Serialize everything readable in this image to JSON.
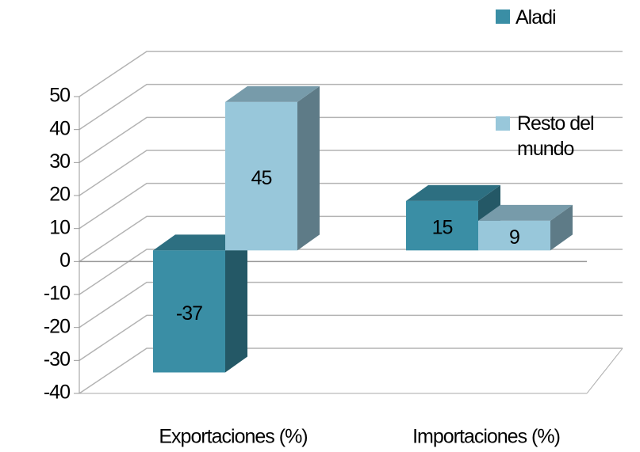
{
  "chart_data": {
    "type": "bar3d",
    "categories": [
      "Exportaciones (%)",
      "Importaciones (%)"
    ],
    "series": [
      {
        "name": "Aladi",
        "color": "#3a8ea5",
        "values": [
          -37,
          15
        ]
      },
      {
        "name": "Resto del mundo",
        "color": "#98c7da",
        "values": [
          45,
          9
        ]
      }
    ],
    "ylim": [
      -40,
      50
    ],
    "yticks": [
      -40,
      -30,
      -20,
      -10,
      0,
      10,
      20,
      30,
      40,
      50
    ],
    "grid": true,
    "legend": "top-right"
  }
}
